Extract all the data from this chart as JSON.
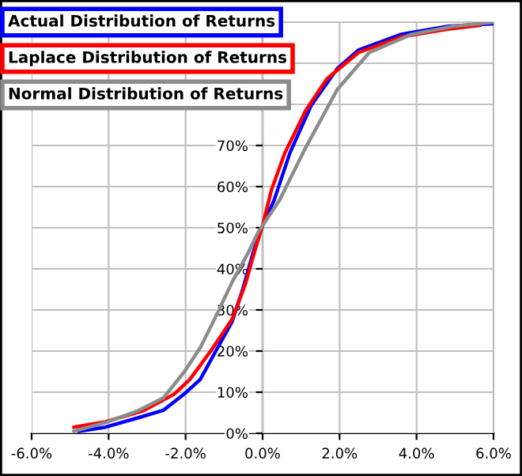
{
  "chart_data": {
    "type": "line",
    "series": [
      {
        "name": "Actual Distribution of Returns",
        "color": "#0000ff",
        "x": [
          -4.77,
          -4.08,
          -3.26,
          -2.58,
          -2.03,
          -1.62,
          -1.21,
          -0.79,
          -0.52,
          -0.25,
          -0.04,
          0.3,
          0.71,
          1.26,
          1.94,
          2.49,
          3.59,
          4.82,
          6.0
        ],
        "values": [
          0.5,
          1.5,
          3.7,
          5.6,
          9.6,
          13.1,
          20.1,
          27.2,
          34.9,
          43.8,
          49.6,
          56.7,
          68.2,
          79.7,
          88.7,
          93.2,
          97.0,
          99.0,
          99.6
        ]
      },
      {
        "name": "Laplace Distribution of Returns",
        "color": "#ff0000",
        "x": [
          -4.9,
          -4.08,
          -3.12,
          -2.3,
          -1.89,
          -1.34,
          -0.79,
          -0.45,
          -0.18,
          0.0,
          0.23,
          0.58,
          1.12,
          1.67,
          2.49,
          3.59,
          4.82,
          5.64
        ],
        "values": [
          1.5,
          2.8,
          5.4,
          9.5,
          13.1,
          20.1,
          27.8,
          36.2,
          45.1,
          50.5,
          59.2,
          68.2,
          78.5,
          86.2,
          92.6,
          96.4,
          98.3,
          99.2
        ]
      },
      {
        "name": "Normal Distribution of Returns",
        "color": "#8c8c8c",
        "x": [
          -4.9,
          -4.08,
          -3.26,
          -2.58,
          -2.03,
          -1.62,
          -1.21,
          -0.79,
          -0.38,
          -0.11,
          0.44,
          1.12,
          1.94,
          2.77,
          3.86,
          4.96,
          6.0
        ],
        "values": [
          0.5,
          2.6,
          5.4,
          8.6,
          15.0,
          20.8,
          28.5,
          36.8,
          43.8,
          49.0,
          56.7,
          69.5,
          83.6,
          92.6,
          97.0,
          99.0,
          100
        ]
      }
    ],
    "xlim": [
      -6,
      6
    ],
    "xticks": [
      {
        "value": -6,
        "label": "-6.0%"
      },
      {
        "value": -4,
        "label": "-4.0%"
      },
      {
        "value": -2,
        "label": "-2.0%"
      },
      {
        "value": 0,
        "label": "0.0%"
      },
      {
        "value": 2,
        "label": "2.0%"
      },
      {
        "value": 4,
        "label": "4.0%"
      },
      {
        "value": 6,
        "label": "6.0%"
      }
    ],
    "ylim": [
      0,
      100
    ],
    "yticks": [
      {
        "value": 0,
        "label": "0%"
      },
      {
        "value": 10,
        "label": "10%"
      },
      {
        "value": 20,
        "label": "20%"
      },
      {
        "value": 30,
        "label": "30%"
      },
      {
        "value": 40,
        "label": "40%"
      },
      {
        "value": 50,
        "label": "50%"
      },
      {
        "value": 60,
        "label": "60%"
      },
      {
        "value": 70,
        "label": "70%"
      },
      {
        "value": 80,
        "label": null
      },
      {
        "value": 90,
        "label": null
      },
      {
        "value": 100,
        "label": null
      }
    ],
    "grid": true,
    "legend": "top left",
    "marker": "none",
    "line_style": "solid"
  }
}
